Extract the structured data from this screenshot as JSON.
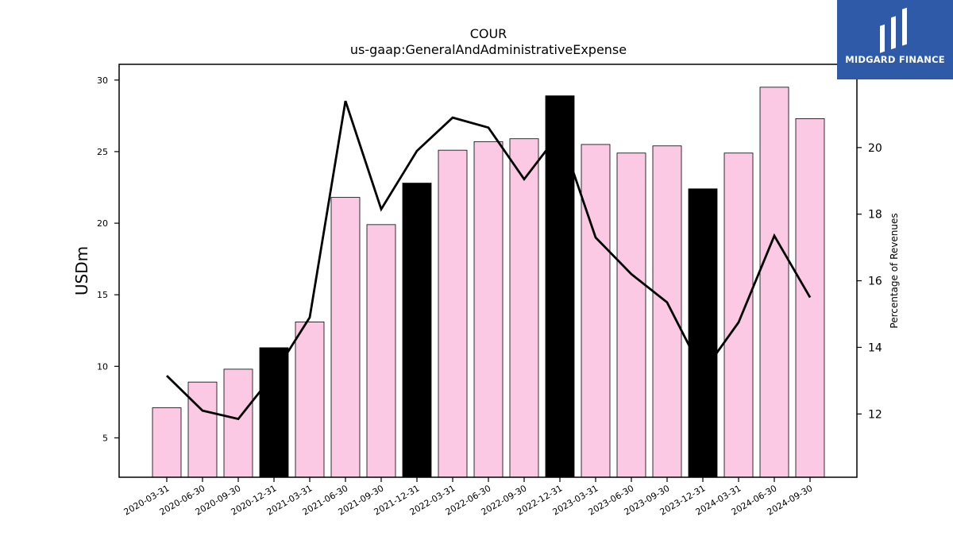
{
  "header": {
    "title": "COUR",
    "subtitle": "us-gaap:GeneralAndAdministrativeExpense"
  },
  "logo": {
    "text": "MIDGARD FINANCE",
    "background_color": "#2f5aa8"
  },
  "chart_data": {
    "type": "bar",
    "categories": [
      "2020-03-31",
      "2020-06-30",
      "2020-09-30",
      "2020-12-31",
      "2021-03-31",
      "2021-06-30",
      "2021-09-30",
      "2021-12-31",
      "2022-03-31",
      "2022-06-30",
      "2022-09-30",
      "2022-12-31",
      "2023-03-31",
      "2023-06-30",
      "2023-09-30",
      "2023-12-31",
      "2024-03-31",
      "2024-06-30",
      "2024-09-30"
    ],
    "series": [
      {
        "axis": "left",
        "type": "bar",
        "values": [
          7.1,
          8.9,
          9.8,
          11.3,
          13.1,
          21.8,
          19.9,
          22.8,
          25.1,
          25.7,
          25.9,
          28.9,
          25.5,
          24.9,
          25.4,
          22.4,
          24.9,
          29.5,
          27.3
        ],
        "colors": [
          "#fbc9e4",
          "#fbc9e4",
          "#fbc9e4",
          "#000000",
          "#fbc9e4",
          "#fbc9e4",
          "#fbc9e4",
          "#000000",
          "#fbc9e4",
          "#fbc9e4",
          "#fbc9e4",
          "#000000",
          "#fbc9e4",
          "#fbc9e4",
          "#fbc9e4",
          "#000000",
          "#fbc9e4",
          "#fbc9e4",
          "#fbc9e4"
        ]
      },
      {
        "axis": "right",
        "type": "line",
        "values": [
          13.15,
          12.1,
          11.85,
          13.2,
          14.9,
          21.4,
          18.15,
          19.9,
          20.9,
          20.6,
          19.05,
          20.45,
          17.3,
          16.2,
          15.35,
          13.25,
          14.75,
          17.35,
          15.5
        ],
        "color": "#000000"
      }
    ],
    "ylabel": "USDm",
    "y2label": "Percentage of Revenues",
    "ylim": [
      2.25,
      31.1
    ],
    "y2lim": [
      10.1,
      22.5
    ],
    "yticks": [
      5,
      10,
      15,
      20,
      25,
      30
    ],
    "y2ticks": [
      12,
      14,
      16,
      18,
      20
    ],
    "grid": false,
    "colors": {
      "bar_default": "#fbc9e4",
      "bar_highlight": "#000000",
      "line": "#000000"
    }
  }
}
